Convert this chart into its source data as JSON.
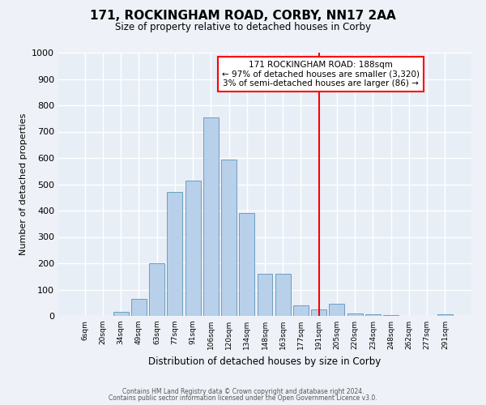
{
  "title": "171, ROCKINGHAM ROAD, CORBY, NN17 2AA",
  "subtitle": "Size of property relative to detached houses in Corby",
  "xlabel": "Distribution of detached houses by size in Corby",
  "ylabel": "Number of detached properties",
  "bar_labels": [
    "6sqm",
    "20sqm",
    "34sqm",
    "49sqm",
    "63sqm",
    "77sqm",
    "91sqm",
    "106sqm",
    "120sqm",
    "134sqm",
    "148sqm",
    "163sqm",
    "177sqm",
    "191sqm",
    "205sqm",
    "220sqm",
    "234sqm",
    "248sqm",
    "262sqm",
    "277sqm",
    "291sqm"
  ],
  "bar_values": [
    0,
    0,
    15,
    65,
    200,
    470,
    515,
    755,
    595,
    390,
    160,
    160,
    40,
    25,
    45,
    10,
    5,
    2,
    1,
    0,
    5
  ],
  "bar_color": "#b8d0ea",
  "bar_edge_color": "#6b9fc0",
  "vline_index": 13,
  "vline_color": "red",
  "annotation_title": "171 ROCKINGHAM ROAD: 188sqm",
  "annotation_line1": "← 97% of detached houses are smaller (3,320)",
  "annotation_line2": "3% of semi-detached houses are larger (86) →",
  "ylim": [
    0,
    1000
  ],
  "yticks": [
    0,
    100,
    200,
    300,
    400,
    500,
    600,
    700,
    800,
    900,
    1000
  ],
  "footer1": "Contains HM Land Registry data © Crown copyright and database right 2024.",
  "footer2": "Contains public sector information licensed under the Open Government Licence v3.0.",
  "bg_color": "#eef2f8",
  "plot_bg_color": "#e8eef6"
}
